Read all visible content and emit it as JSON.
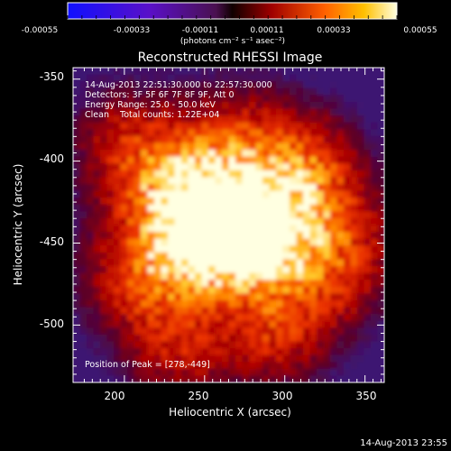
{
  "colorbar": {
    "tick_labels": [
      "-0.00055",
      "-0.00033",
      "-0.00011",
      "0.00011",
      "0.00033",
      "0.00055"
    ],
    "unit_label": "(photons cm⁻² s⁻¹ asec⁻²)"
  },
  "chart_data": {
    "type": "heatmap",
    "title": "Reconstructed RHESSI Image",
    "xlabel": "Heliocentric X (arcsec)",
    "ylabel": "Heliocentric Y (arcsec)",
    "xlim": [
      168,
      362
    ],
    "ylim": [
      -535,
      -343
    ],
    "x_ticks": [
      200,
      250,
      300,
      350
    ],
    "y_ticks": [
      -350,
      -400,
      -450,
      -500
    ],
    "color_range": [
      -0.00055,
      0.00055
    ],
    "annotations": [
      "14-Aug-2013 22:51:30.000 to 22:57:30.000",
      "Detectors: 3F 5F 6F 7F 8F 9F, Att 0",
      "Energy Range: 25.0 - 50.0 keV",
      "Clean    Total counts: 1.22E+04"
    ],
    "peak_label": "Position of Peak = [278,-449]",
    "peak": [
      278,
      -449
    ],
    "sources": [
      {
        "x": 278,
        "y": -449,
        "value": 0.00053
      },
      {
        "x": 245,
        "y": -450,
        "value": 0.00049
      },
      {
        "x": 257,
        "y": -421,
        "value": 0.0004
      },
      {
        "x": 300,
        "y": -438,
        "value": 0.00032
      },
      {
        "x": 222,
        "y": -412,
        "value": 0.00026
      },
      {
        "x": 312,
        "y": -404,
        "value": 0.00024
      },
      {
        "x": 212,
        "y": -470,
        "value": 0.00022
      },
      {
        "x": 233,
        "y": -515,
        "value": 0.00014
      },
      {
        "x": 294,
        "y": -502,
        "value": 0.00018
      },
      {
        "x": 330,
        "y": -470,
        "value": 0.00016
      },
      {
        "x": 197,
        "y": -383,
        "value": 0.00012
      },
      {
        "x": 270,
        "y": -385,
        "value": 0.00013
      },
      {
        "x": 345,
        "y": -440,
        "value": 0.0001
      }
    ]
  },
  "timestamp": "14-Aug-2013 23:55"
}
